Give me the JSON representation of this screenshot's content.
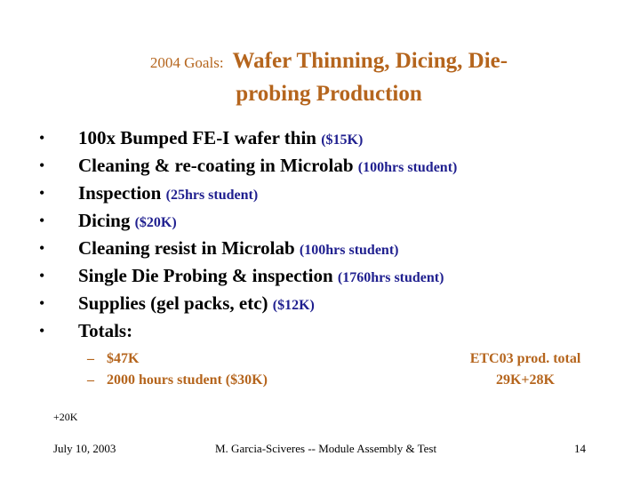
{
  "title": {
    "prefix": "2004 Goals:",
    "line1": "Wafer Thinning, Dicing, Die-",
    "line2": "probing Production"
  },
  "bullets": [
    {
      "text": "100x Bumped FE-I wafer thin",
      "note": "($15K)"
    },
    {
      "text": "Cleaning & re-coating in Microlab",
      "note": "(100hrs student)"
    },
    {
      "text": "Inspection",
      "note": "(25hrs student)"
    },
    {
      "text": "Dicing",
      "note": "($20K)"
    },
    {
      "text": "Cleaning resist in Microlab",
      "note": "(100hrs student)"
    },
    {
      "text": "Single Die Probing & inspection",
      "note": "(1760hrs student)"
    },
    {
      "text": "Supplies (gel packs, etc)",
      "note": "($12K)"
    },
    {
      "text": "Totals:",
      "note": ""
    }
  ],
  "bullet_symbol": "•",
  "sub_symbol": "–",
  "totals": [
    "$47K",
    "2000 hours student ($30K)"
  ],
  "etc03": {
    "line1": "ETC03 prod. total",
    "line2": "29K+28K"
  },
  "extra_note": "+20K",
  "footer": {
    "date": "July 10, 2003",
    "author": "M. Garcia-Sciveres -- Module Assembly & Test",
    "page": "14"
  },
  "colors": {
    "accent": "#b5651d",
    "note": "#1f1f8f"
  }
}
